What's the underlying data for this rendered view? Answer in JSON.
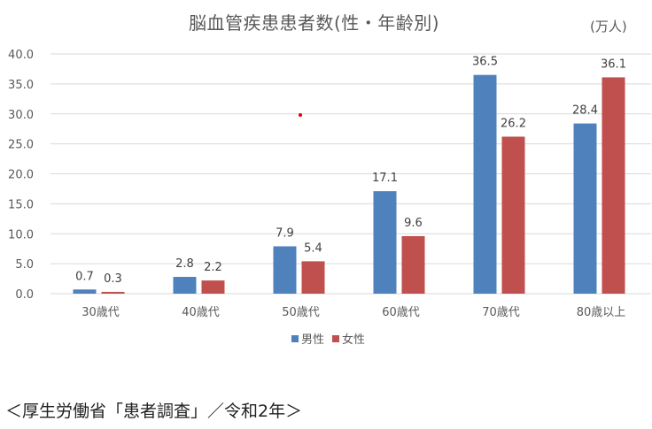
{
  "chart_data": {
    "type": "bar",
    "title": "脳血管疾患患者数(性・年齢別)",
    "unit_label": "(万人)",
    "categories": [
      "30歳代",
      "40歳代",
      "50歳代",
      "60歳代",
      "70歳代",
      "80歳以上"
    ],
    "series": [
      {
        "name": "男性",
        "color": "#4F81BD",
        "values": [
          0.7,
          2.8,
          7.9,
          17.1,
          36.5,
          28.4
        ]
      },
      {
        "name": "女性",
        "color": "#C0504D",
        "values": [
          0.3,
          2.2,
          5.4,
          9.6,
          26.2,
          36.1
        ]
      }
    ],
    "ylim": [
      0,
      40
    ],
    "yticks": [
      "0.0",
      "5.0",
      "10.0",
      "15.0",
      "20.0",
      "25.0",
      "30.0",
      "35.0",
      "40.0"
    ],
    "grid": true,
    "legend_position": "bottom",
    "xlabel": "",
    "ylabel": ""
  },
  "source": "＜厚生労働省「患者調査」／令和2年＞"
}
